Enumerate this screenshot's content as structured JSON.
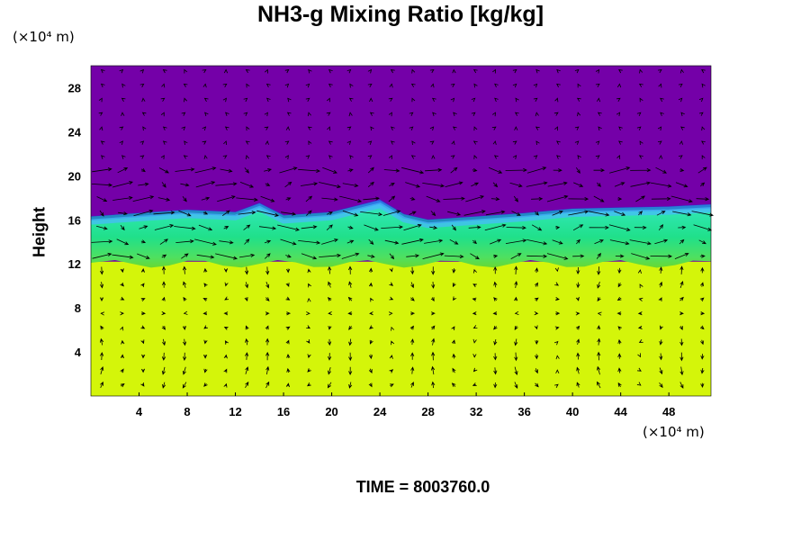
{
  "chart_data": {
    "type": "heatmap",
    "title": "NH3-g Mixing Ratio [kg/kg]",
    "ylabel": "Height",
    "xlabel": "",
    "x_unit": "(×10⁴ m)",
    "y_unit": "(×10⁴ m)",
    "xlim": [
      0,
      51.5
    ],
    "ylim": [
      0,
      30
    ],
    "x_ticks": [
      4,
      8,
      12,
      16,
      20,
      24,
      28,
      32,
      36,
      40,
      44,
      48
    ],
    "y_ticks": [
      4,
      8,
      12,
      16,
      20,
      24,
      28
    ],
    "overlay": "wind vectors",
    "colors": {
      "upper": "#7400a8",
      "lower": "#d4f50a",
      "mid": "#20e08a",
      "boundary": "#49b8ff",
      "transition": "#6ad830"
    },
    "layers": [
      {
        "name_visible": false,
        "from": 0,
        "to": 12.2,
        "color": "lower"
      },
      {
        "name_visible": false,
        "from": 12.2,
        "to": 16.4,
        "color": "mid"
      },
      {
        "name_visible": false,
        "from": 16.4,
        "to": 30,
        "color": "upper"
      }
    ],
    "interface_height": [
      [
        0,
        16.3
      ],
      [
        4,
        16.6
      ],
      [
        8,
        16.9
      ],
      [
        12,
        16.7
      ],
      [
        14,
        17.5
      ],
      [
        16,
        16.4
      ],
      [
        20,
        16.7
      ],
      [
        24,
        17.8
      ],
      [
        26,
        16.5
      ],
      [
        28,
        16.0
      ],
      [
        32,
        16.3
      ],
      [
        36,
        16.6
      ],
      [
        40,
        17.0
      ],
      [
        44,
        17.1
      ],
      [
        48,
        17.2
      ],
      [
        51.5,
        17.4
      ]
    ]
  },
  "time_label": "TIME = 8003760.0"
}
